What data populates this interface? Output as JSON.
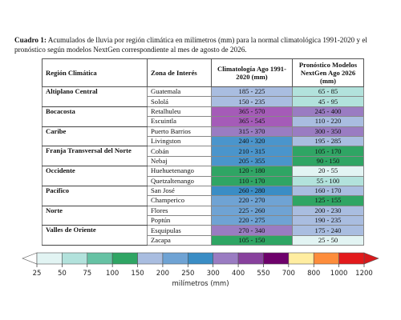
{
  "caption": {
    "label": "Cuadro 1:",
    "text": "Acumulados de lluvia por región climática en milímetros (mm) para la normal climatológica 1991-2020 y el pronóstico según modelos NextGen correspondiente al mes de agosto de 2026."
  },
  "table": {
    "headers": [
      "Región Climática",
      "Zona de Interés",
      "Climatología Ago 1991-2020 (mm)",
      "Pronóstico Modelos NextGen Ago 2026 (mm)"
    ],
    "regions": [
      {
        "name": "Altiplano Central",
        "zones": [
          {
            "name": "Guatemala",
            "clim": {
              "text": "185 - 225",
              "color": "#a9bde0"
            },
            "fore": {
              "text": "65 - 85",
              "color": "#b2e2dc"
            }
          },
          {
            "name": "Sololá",
            "clim": {
              "text": "150 - 235",
              "color": "#a9bde0"
            },
            "fore": {
              "text": "45 - 95",
              "color": "#b2e2dc"
            }
          }
        ]
      },
      {
        "name": "Bocacosta",
        "zones": [
          {
            "name": "Retalhuleu",
            "clim": {
              "text": "365 - 570",
              "color": "#a55bb8"
            },
            "fore": {
              "text": "245 - 400",
              "color": "#9a7cc2"
            }
          },
          {
            "name": "Escuintla",
            "clim": {
              "text": "365 - 545",
              "color": "#a55bb8"
            },
            "fore": {
              "text": "110 - 220",
              "color": "#a9bde0"
            }
          }
        ]
      },
      {
        "name": "Caribe",
        "zones": [
          {
            "name": "Puerto Barrios",
            "clim": {
              "text": "315 - 370",
              "color": "#9a7cc2"
            },
            "fore": {
              "text": "300 - 350",
              "color": "#9a7cc2"
            }
          },
          {
            "name": "Livingston",
            "clim": {
              "text": "240 - 320",
              "color": "#4a95cc"
            },
            "fore": {
              "text": "195 - 285",
              "color": "#a9bde0"
            }
          }
        ]
      },
      {
        "name": "Franja Transversal del Norte",
        "zones": [
          {
            "name": "Cobán",
            "clim": {
              "text": "210 - 315",
              "color": "#4a95cc"
            },
            "fore": {
              "text": "105 - 170",
              "color": "#2fa564"
            }
          },
          {
            "name": "Nebaj",
            "clim": {
              "text": "205 - 355",
              "color": "#4a95cc"
            },
            "fore": {
              "text": "90 - 150",
              "color": "#2fa564"
            }
          }
        ]
      },
      {
        "name": "Occidente",
        "zones": [
          {
            "name": "Huehuetenango",
            "clim": {
              "text": "120 - 180",
              "color": "#2fa564"
            },
            "fore": {
              "text": "20 - 55",
              "color": "#e2f4f3"
            }
          },
          {
            "name": "Quetzaltenango",
            "clim": {
              "text": "110 - 170",
              "color": "#2fa564"
            },
            "fore": {
              "text": "55 - 100",
              "color": "#b2e2dc"
            }
          }
        ]
      },
      {
        "name": "Pacífico",
        "zones": [
          {
            "name": "San José",
            "clim": {
              "text": "260 - 280",
              "color": "#3a8dc5"
            },
            "fore": {
              "text": "160 - 170",
              "color": "#a9bde0"
            }
          },
          {
            "name": "Champerico",
            "clim": {
              "text": "220 - 270",
              "color": "#6fa3d4"
            },
            "fore": {
              "text": "125 - 155",
              "color": "#2fa564"
            }
          }
        ]
      },
      {
        "name": "Norte",
        "zones": [
          {
            "name": "Flores",
            "clim": {
              "text": "225 - 260",
              "color": "#6fa3d4"
            },
            "fore": {
              "text": "200 - 230",
              "color": "#a9bde0"
            }
          },
          {
            "name": "Poptún",
            "clim": {
              "text": "220 - 275",
              "color": "#6fa3d4"
            },
            "fore": {
              "text": "190 - 235",
              "color": "#a9bde0"
            }
          }
        ]
      },
      {
        "name": "Valles de Oriente",
        "zones": [
          {
            "name": "Esquipulas",
            "clim": {
              "text": "270 - 340",
              "color": "#9a7cc2"
            },
            "fore": {
              "text": "175 - 240",
              "color": "#a9bde0"
            }
          },
          {
            "name": "Zacapa",
            "clim": {
              "text": "105 - 150",
              "color": "#2fa564"
            },
            "fore": {
              "text": "25 - 50",
              "color": "#e2f4f3"
            }
          }
        ]
      }
    ]
  },
  "legend": {
    "label": "milímetros (mm)",
    "ticks": [
      25,
      50,
      75,
      100,
      150,
      200,
      250,
      300,
      400,
      550,
      700,
      800,
      1000,
      1200
    ],
    "colors": [
      "#e2f4f3",
      "#b2e2dc",
      "#66c2a4",
      "#2fa564",
      "#a9bde0",
      "#6fa3d4",
      "#3a8dc5",
      "#9a7cc2",
      "#88419d",
      "#6e016b",
      "#ffeda0",
      "#fd8d3c",
      "#e31a1c"
    ],
    "under_color": "#ffffff",
    "over_color": "#d7191c"
  }
}
